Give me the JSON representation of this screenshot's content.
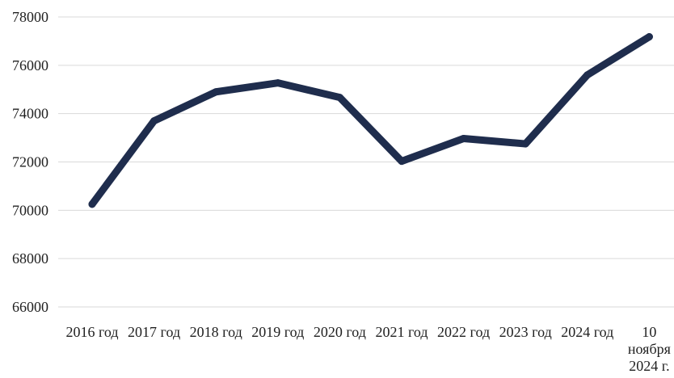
{
  "chart_data": {
    "type": "line",
    "title": "",
    "xlabel": "",
    "ylabel": "",
    "categories": [
      [
        "2016 год"
      ],
      [
        "2017 год"
      ],
      [
        "2018 год"
      ],
      [
        "2019 год"
      ],
      [
        "2020 год"
      ],
      [
        "2021 год"
      ],
      [
        "2022 год"
      ],
      [
        "2023 год"
      ],
      [
        "2024 год"
      ],
      [
        "10",
        "ноября",
        "2024 г."
      ]
    ],
    "series": [
      {
        "values": [
          70250,
          73700,
          74900,
          75270,
          74670,
          72030,
          72970,
          72750,
          75600,
          77180
        ],
        "color": "#1f2d4d"
      }
    ],
    "ylim": [
      66000,
      78000
    ],
    "yticks": [
      66000,
      68000,
      70000,
      72000,
      74000,
      76000,
      78000
    ],
    "grid": "horizontal",
    "legend": "none"
  }
}
